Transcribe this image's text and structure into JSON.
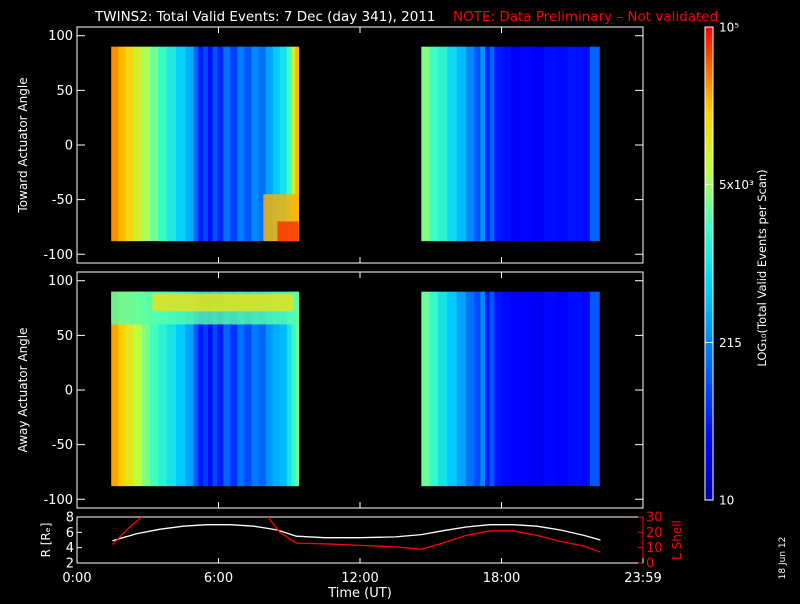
{
  "title": {
    "main": "TWINS2: Total Valid Events:  7 Dec (day 341), 2011",
    "note": "NOTE: Data Preliminary – Not validated"
  },
  "date_stamp": "18 Jun 12",
  "colors": {
    "background": "#000000",
    "axis": "#ffffff",
    "note": "#ff0000",
    "r_line": "#ffffff",
    "l_shell_line": "#ff0000"
  },
  "chart_data": [
    {
      "type": "heatmap",
      "panel": "toward",
      "ylabel": "Toward Actuator Angle",
      "ylim": [
        -108,
        108
      ],
      "yticks": [
        100,
        50,
        0,
        -50,
        -100
      ],
      "xlim": [
        0,
        24
      ],
      "angle_range": [
        -88,
        90
      ],
      "segments": [
        {
          "t_start": 1.45,
          "t_end": 9.4,
          "columns": [
            {
              "t": 1.45,
              "level": 0.88
            },
            {
              "t": 1.75,
              "level": 0.84
            },
            {
              "t": 2.05,
              "level": 0.8
            },
            {
              "t": 2.4,
              "level": 0.74
            },
            {
              "t": 2.75,
              "level": 0.68
            },
            {
              "t": 3.1,
              "level": 0.62
            },
            {
              "t": 3.45,
              "level": 0.57
            },
            {
              "t": 3.8,
              "level": 0.52
            },
            {
              "t": 4.2,
              "level": 0.46
            },
            {
              "t": 4.6,
              "level": 0.4
            },
            {
              "t": 4.95,
              "level": 0.28
            },
            {
              "t": 5.15,
              "level": 0.16
            },
            {
              "t": 5.35,
              "level": 0.24
            },
            {
              "t": 5.55,
              "level": 0.14
            },
            {
              "t": 5.75,
              "level": 0.26
            },
            {
              "t": 5.95,
              "level": 0.18
            },
            {
              "t": 6.2,
              "level": 0.3
            },
            {
              "t": 6.5,
              "level": 0.22
            },
            {
              "t": 6.8,
              "level": 0.32
            },
            {
              "t": 7.1,
              "level": 0.26
            },
            {
              "t": 7.4,
              "level": 0.34
            },
            {
              "t": 7.7,
              "level": 0.3
            },
            {
              "t": 8.0,
              "level": 0.38
            },
            {
              "t": 8.3,
              "level": 0.44
            },
            {
              "t": 8.6,
              "level": 0.5
            },
            {
              "t": 8.9,
              "level": 0.58
            },
            {
              "t": 9.1,
              "level": 0.74
            },
            {
              "t": 9.25,
              "level": 0.84
            }
          ],
          "blobs": [
            {
              "t_start": 7.9,
              "t_end": 9.4,
              "a_low": -88,
              "a_high": -45,
              "level": 0.85
            },
            {
              "t_start": 8.5,
              "t_end": 9.4,
              "a_low": -88,
              "a_high": -70,
              "level": 0.96
            }
          ]
        },
        {
          "t_start": 14.6,
          "t_end": 22.15,
          "columns": [
            {
              "t": 14.6,
              "level": 0.64
            },
            {
              "t": 14.95,
              "level": 0.58
            },
            {
              "t": 15.3,
              "level": 0.54
            },
            {
              "t": 15.7,
              "level": 0.48
            },
            {
              "t": 16.1,
              "level": 0.42
            },
            {
              "t": 16.5,
              "level": 0.34
            },
            {
              "t": 16.85,
              "level": 0.26
            },
            {
              "t": 17.1,
              "level": 0.36
            },
            {
              "t": 17.3,
              "level": 0.18
            },
            {
              "t": 17.5,
              "level": 0.28
            },
            {
              "t": 17.7,
              "level": 0.16
            },
            {
              "t": 18.0,
              "level": 0.14
            },
            {
              "t": 18.4,
              "level": 0.12
            },
            {
              "t": 18.8,
              "level": 0.13
            },
            {
              "t": 19.3,
              "level": 0.12
            },
            {
              "t": 19.8,
              "level": 0.14
            },
            {
              "t": 20.3,
              "level": 0.13
            },
            {
              "t": 20.8,
              "level": 0.15
            },
            {
              "t": 21.3,
              "level": 0.14
            },
            {
              "t": 21.75,
              "level": 0.28
            }
          ],
          "blobs": []
        }
      ]
    },
    {
      "type": "heatmap",
      "panel": "away",
      "ylabel": "Away Actuator Angle",
      "ylim": [
        -108,
        108
      ],
      "yticks": [
        100,
        50,
        0,
        -50,
        -100
      ],
      "xlim": [
        0,
        24
      ],
      "angle_range": [
        -88,
        90
      ],
      "segments": [
        {
          "t_start": 1.45,
          "t_end": 9.4,
          "columns": [
            {
              "t": 1.45,
              "level": 0.86
            },
            {
              "t": 1.75,
              "level": 0.82
            },
            {
              "t": 2.05,
              "level": 0.76
            },
            {
              "t": 2.4,
              "level": 0.7
            },
            {
              "t": 2.75,
              "level": 0.64
            },
            {
              "t": 3.1,
              "level": 0.58
            },
            {
              "t": 3.45,
              "level": 0.54
            },
            {
              "t": 3.8,
              "level": 0.5
            },
            {
              "t": 4.2,
              "level": 0.44
            },
            {
              "t": 4.6,
              "level": 0.38
            },
            {
              "t": 4.95,
              "level": 0.26
            },
            {
              "t": 5.15,
              "level": 0.15
            },
            {
              "t": 5.35,
              "level": 0.22
            },
            {
              "t": 5.55,
              "level": 0.14
            },
            {
              "t": 5.75,
              "level": 0.24
            },
            {
              "t": 5.95,
              "level": 0.16
            },
            {
              "t": 6.2,
              "level": 0.28
            },
            {
              "t": 6.5,
              "level": 0.2
            },
            {
              "t": 6.8,
              "level": 0.3
            },
            {
              "t": 7.1,
              "level": 0.24
            },
            {
              "t": 7.4,
              "level": 0.32
            },
            {
              "t": 7.7,
              "level": 0.28
            },
            {
              "t": 8.0,
              "level": 0.36
            },
            {
              "t": 8.3,
              "level": 0.4
            },
            {
              "t": 8.6,
              "level": 0.42
            },
            {
              "t": 8.9,
              "level": 0.5
            },
            {
              "t": 9.1,
              "level": 0.56
            },
            {
              "t": 9.25,
              "level": 0.62
            }
          ],
          "blobs": [
            {
              "t_start": 1.45,
              "t_end": 9.4,
              "a_low": 60,
              "a_high": 90,
              "level": 0.6
            },
            {
              "t_start": 3.2,
              "t_end": 9.2,
              "a_low": 72,
              "a_high": 88,
              "level": 0.78
            }
          ]
        },
        {
          "t_start": 14.6,
          "t_end": 22.15,
          "columns": [
            {
              "t": 14.6,
              "level": 0.62
            },
            {
              "t": 14.95,
              "level": 0.56
            },
            {
              "t": 15.3,
              "level": 0.5
            },
            {
              "t": 15.7,
              "level": 0.44
            },
            {
              "t": 16.1,
              "level": 0.38
            },
            {
              "t": 16.5,
              "level": 0.3
            },
            {
              "t": 16.85,
              "level": 0.24
            },
            {
              "t": 17.1,
              "level": 0.34
            },
            {
              "t": 17.3,
              "level": 0.16
            },
            {
              "t": 17.5,
              "level": 0.26
            },
            {
              "t": 17.7,
              "level": 0.15
            },
            {
              "t": 18.0,
              "level": 0.13
            },
            {
              "t": 18.4,
              "level": 0.12
            },
            {
              "t": 18.8,
              "level": 0.12
            },
            {
              "t": 19.3,
              "level": 0.11
            },
            {
              "t": 19.8,
              "level": 0.13
            },
            {
              "t": 20.3,
              "level": 0.12
            },
            {
              "t": 20.8,
              "level": 0.14
            },
            {
              "t": 21.3,
              "level": 0.13
            },
            {
              "t": 21.75,
              "level": 0.26
            }
          ],
          "blobs": []
        }
      ]
    },
    {
      "type": "line",
      "panel": "orbit",
      "xlabel": "Time (UT)",
      "xlim": [
        0,
        24
      ],
      "xticks": [
        0,
        6,
        12,
        18,
        24
      ],
      "xtick_labels": [
        "0:00",
        "6:00",
        "12:00",
        "18:00",
        "23:59"
      ],
      "left_axis": {
        "label": "R [Rₑ]",
        "ylim": [
          2,
          8
        ],
        "ticks": [
          2,
          4,
          6,
          8
        ]
      },
      "right_axis": {
        "label": "L Shell",
        "ylim": [
          0,
          30
        ],
        "ticks": [
          0,
          10,
          20,
          30
        ]
      },
      "series": [
        {
          "name": "R",
          "axis": "left",
          "color": "#ffffff",
          "x": [
            1.5,
            2.5,
            3.5,
            4.5,
            5.5,
            6.5,
            7.5,
            8.5,
            9.3,
            10.5,
            12.0,
            13.5,
            14.6,
            15.5,
            16.5,
            17.5,
            18.5,
            19.5,
            20.5,
            21.5,
            22.2
          ],
          "y": [
            4.9,
            5.8,
            6.4,
            6.8,
            7.0,
            7.0,
            6.8,
            6.3,
            5.5,
            5.3,
            5.3,
            5.4,
            5.7,
            6.2,
            6.7,
            7.0,
            7.0,
            6.8,
            6.3,
            5.6,
            5.0
          ]
        },
        {
          "name": "L Shell",
          "axis": "right",
          "color": "#ff0000",
          "segments": [
            {
              "x": [
                1.5,
                2.2,
                2.75
              ],
              "y": [
                12,
                23,
                30
              ]
            },
            {
              "x": [
                8.1,
                8.6,
                9.3,
                10.5,
                12.0,
                13.5,
                14.6,
                15.5,
                16.5,
                17.5,
                18.5,
                19.5,
                20.5,
                21.5,
                22.2
              ],
              "y": [
                30,
                20,
                13,
                12.5,
                11.5,
                10.5,
                9,
                13,
                18,
                21,
                21,
                18,
                14,
                11,
                7
              ]
            }
          ]
        }
      ]
    },
    {
      "type": "colorbar",
      "label": "LOG₁₀(Total Valid Events per Scan)",
      "ticks": [
        {
          "text": "10",
          "position": 0.0
        },
        {
          "text": "215",
          "position": 0.333
        },
        {
          "text": "5x10³",
          "position": 0.667
        },
        {
          "text": "10⁵",
          "position": 1.0
        }
      ]
    }
  ]
}
